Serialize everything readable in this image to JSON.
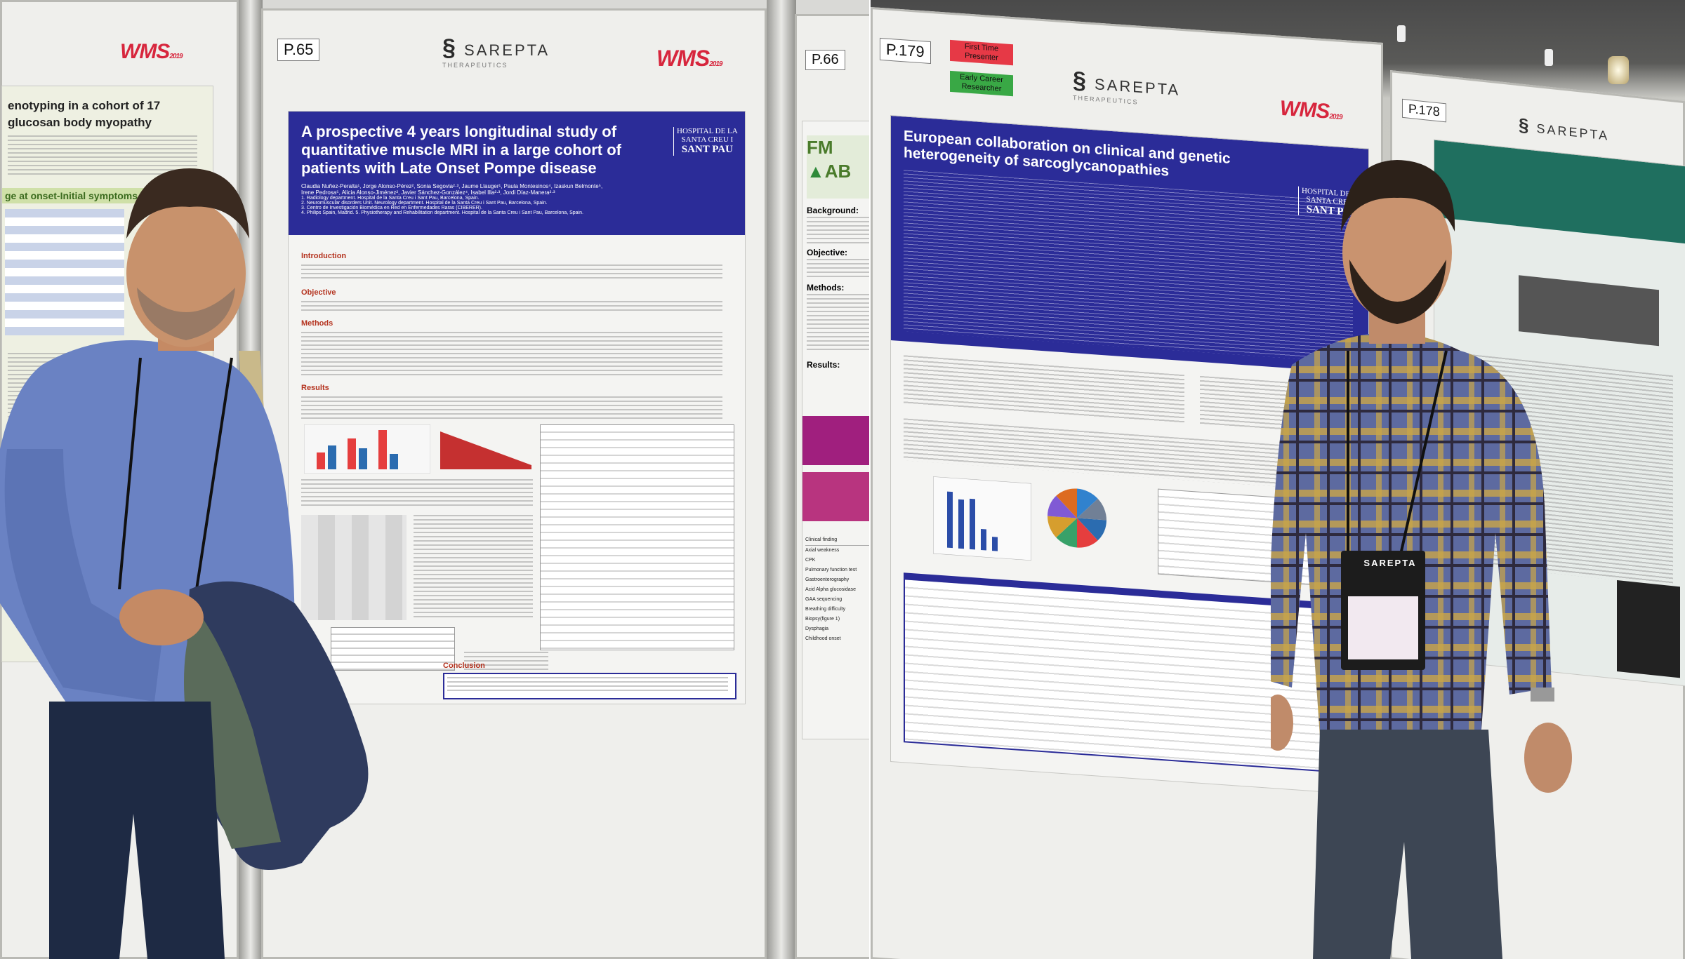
{
  "left_panel": {
    "left_board": {
      "wms_label": "WMS",
      "wms_year": "2019",
      "partial_title_line1": "enotyping in a cohort of 17",
      "partial_title_line2": "glucosan body myopathy",
      "partial_section": "ge at onset-Initial symptoms"
    },
    "main_board": {
      "board_number": "P.65",
      "sponsor_name": "SAREPTA",
      "sponsor_sub": "THERAPEUTICS",
      "wms_label": "WMS",
      "wms_year": "2019",
      "poster": {
        "title_line1": "A prospective 4 years longitudinal study of",
        "title_line2": "quantitative muscle MRI in a large cohort of",
        "title_line3": "patients with Late Onset Pompe disease",
        "hospital_line1": "HOSPITAL DE LA",
        "hospital_line2": "SANTA CREU I",
        "hospital_line3": "SANT PAU",
        "authors_line1": "Claudia Nuñez-Peralta¹, Jorge Alonso-Pérez², Sonia Segovia²·³, Jaume Llauger¹, Paula Montesinos⁴, Izaskun Belmonte⁵,",
        "authors_line2": "Irene Pedrosa⁵, Alicia Alonso-Jiménez², Javier Sánchez-González⁴, Isabel Illa²·³, Jordi Díaz-Manera²·³",
        "affil_line1": "1. Radiology department. Hospital de la Santa Creu i Sant Pau, Barcelona, Spain.",
        "affil_line2": "2. Neuromuscular disorders Unit. Neurology department. Hospital de la Santa Creu i Sant Pau, Barcelona, Spain.",
        "affil_line3": "3. Centro de Investigación Biomédica en Red en Enfermedades Raras (CIBERER).",
        "affil_line4": "4. Philips Spain, Madrid. 5. Physiotherapy and Rehabilitation department. Hospital de la Santa Creu i Sant Pau, Barcelona, Spain.",
        "sections": [
          "Introduction",
          "Objective",
          "Methods",
          "Results",
          "Conclusion"
        ]
      }
    },
    "right_partial_board": {
      "board_number": "P.66",
      "logo_text_top": "FM",
      "logo_text_bottom": "AB",
      "labels": [
        "Background:",
        "Objective:",
        "Methods:",
        "Results:"
      ],
      "table_rows": [
        "Clinical finding",
        "Axial weakness",
        "CPK",
        "Pulmonary function test",
        "Gastroenterography",
        "Acid Alpha glucosidase",
        "GAA sequencing",
        "Breathing difficulty",
        "Biopsy(figure 1)",
        "Dysphagia",
        "Childhood onset"
      ]
    }
  },
  "right_panel": {
    "main_board": {
      "board_number": "P.179",
      "first_time_line1": "First Time",
      "first_time_line2": "Presenter",
      "early_career_line1": "Early Career",
      "early_career_line2": "Researcher",
      "sponsor_name": "SAREPTA",
      "sponsor_sub": "THERAPEUTICS",
      "wms_label": "WMS",
      "wms_year": "2019",
      "poster": {
        "title_line1": "European collaboration on clinical and genetic",
        "title_line2": "heterogeneity of sarcoglycanopathies",
        "hospital_line1": "HOSPITAL DE LA",
        "hospital_line2": "SANTA CREU I",
        "hospital_line3": "SANT PAU"
      }
    },
    "right_partial_board": {
      "board_number": "P.178",
      "sponsor_name": "SAREPTA"
    },
    "badge": {
      "brand": "SAREPTA"
    }
  },
  "pie_colors": [
    "#2b6cb0",
    "#e53e3e",
    "#38a169",
    "#d69e2e",
    "#805ad5",
    "#dd6b20",
    "#3182ce",
    "#718096"
  ]
}
